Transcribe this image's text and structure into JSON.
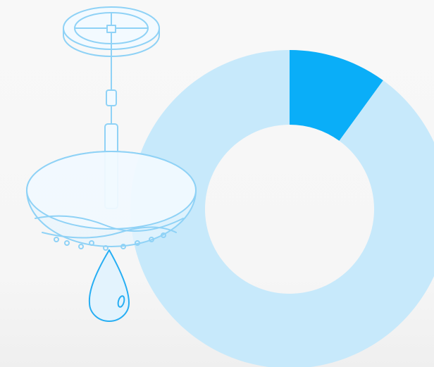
{
  "chart_data": {
    "type": "pie",
    "donut": true,
    "values": [
      10,
      90
    ],
    "colors": [
      "#0aaef8",
      "#c7e9fb"
    ]
  }
}
